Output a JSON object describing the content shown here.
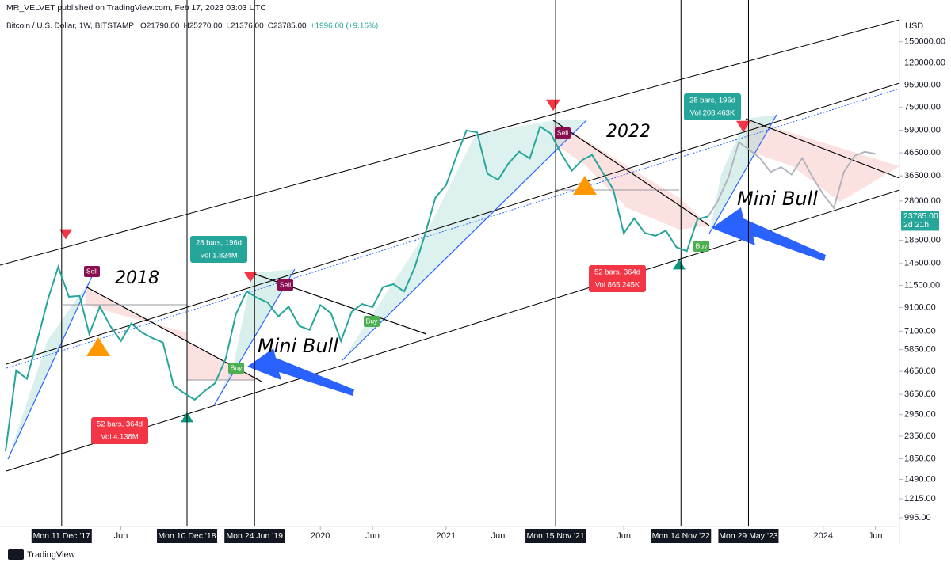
{
  "chart_data": {
    "type": "line",
    "header": "MR_VELVET published on TradingView.com, Feb 17, 2023 03:03 UTC",
    "symbol": "Bitcoin / U.S. Dollar, 1W, BITSTAMP",
    "ohlc": [
      "O21790.00",
      "H25270.00",
      "L21376.00",
      "C23785.00",
      "+1996.00 (+9.16%)"
    ],
    "currency": "USD",
    "footer": "TradingView",
    "log_scale": true,
    "grid": false,
    "ylim": [
      946,
      197000
    ],
    "yticks": [
      {
        "value": 150000,
        "label": "150000.00"
      },
      {
        "value": 120000,
        "label": "120000.00"
      },
      {
        "value": 95000,
        "label": "95000.00"
      },
      {
        "value": 75000,
        "label": "75000.00"
      },
      {
        "value": 59000,
        "label": "59000.00"
      },
      {
        "value": 46500,
        "label": "46500.00"
      },
      {
        "value": 36500,
        "label": "36500.00"
      },
      {
        "value": 28000,
        "label": "28000.00"
      },
      {
        "value": 18500,
        "label": "18500.00"
      },
      {
        "value": 14500,
        "label": "14500.00"
      },
      {
        "value": 11500,
        "label": "11500.00"
      },
      {
        "value": 9100,
        "label": "9100.00"
      },
      {
        "value": 7100,
        "label": "7100.00"
      },
      {
        "value": 5850,
        "label": "5850.00"
      },
      {
        "value": 4650,
        "label": "4650.00"
      },
      {
        "value": 3650,
        "label": "3650.00"
      },
      {
        "value": 2950,
        "label": "2950.00"
      },
      {
        "value": 2350,
        "label": "2350.00"
      },
      {
        "value": 1850,
        "label": "1850.00"
      },
      {
        "value": 1490,
        "label": "1490.00"
      },
      {
        "value": 1215,
        "label": "1215.00"
      },
      {
        "value": 995,
        "label": "995.00"
      }
    ],
    "xlim": [
      "2017-06-15",
      "2024-08-10"
    ],
    "xticks": [
      {
        "value": "2018-06",
        "label": "Jun"
      },
      {
        "value": "2020-01",
        "label": "2020"
      },
      {
        "value": "2020-06",
        "label": "Jun"
      },
      {
        "value": "2021-01",
        "label": "2021"
      },
      {
        "value": "2021-06",
        "label": "Jun"
      },
      {
        "value": "2022-06",
        "label": "Jun"
      },
      {
        "value": "2024-01",
        "label": "2024"
      },
      {
        "value": "2024-06",
        "label": "Jun"
      }
    ],
    "vlines": [
      {
        "value": "2017-12-11",
        "label": "Mon 11 Dec '17"
      },
      {
        "value": "2018-12-10",
        "label": "Mon 10 Dec '18"
      },
      {
        "value": "2019-06-24",
        "label": "Mon 24 Jun '19"
      },
      {
        "value": "2021-11-15",
        "label": "Mon 15 Nov '21"
      },
      {
        "value": "2022-11-14",
        "label": "Mon 14 Nov '22"
      },
      {
        "value": "2023-05-29",
        "label": "Mon 29 May '23"
      }
    ],
    "last_price": {
      "value": 23785,
      "label": "23785.00",
      "countdown": "2d 21h"
    },
    "series": [
      {
        "color": "#26a69a",
        "x": [
          "2017-07",
          "2017-08",
          "2017-09",
          "2017-10",
          "2017-11",
          "2017-12",
          "2018-01",
          "2018-02",
          "2018-03",
          "2018-04",
          "2018-05",
          "2018-06",
          "2018-07",
          "2018-08",
          "2018-09",
          "2018-10",
          "2018-11",
          "2018-12",
          "2019-01",
          "2019-02",
          "2019-03",
          "2019-04",
          "2019-05",
          "2019-06",
          "2019-07",
          "2019-08",
          "2019-09",
          "2019-10",
          "2019-11",
          "2019-12",
          "2020-01",
          "2020-02",
          "2020-03",
          "2020-04",
          "2020-05",
          "2020-06",
          "2020-07",
          "2020-08",
          "2020-09",
          "2020-10",
          "2020-11",
          "2020-12",
          "2021-01",
          "2021-02",
          "2021-03",
          "2021-04",
          "2021-05",
          "2021-06",
          "2021-07",
          "2021-08",
          "2021-09",
          "2021-10",
          "2021-11",
          "2021-12",
          "2022-01",
          "2022-02",
          "2022-03",
          "2022-04",
          "2022-05",
          "2022-06",
          "2022-07",
          "2022-08",
          "2022-09",
          "2022-10",
          "2022-11",
          "2022-12",
          "2023-01",
          "2023-02"
        ],
        "values": [
          2000,
          4700,
          4300,
          6400,
          9900,
          14000,
          10200,
          10300,
          6900,
          9200,
          7500,
          6400,
          7700,
          7000,
          6600,
          6300,
          4000,
          3700,
          3450,
          3800,
          4100,
          5300,
          8500,
          10800,
          10100,
          9600,
          8300,
          9200,
          7500,
          7200,
          9350,
          8600,
          6400,
          8700,
          9450,
          9150,
          11300,
          11650,
          10800,
          13800,
          19700,
          29000,
          33100,
          45200,
          58800,
          57700,
          37300,
          35000,
          41500,
          47100,
          43800,
          61300,
          57000,
          46200,
          38500,
          43200,
          45500,
          37700,
          31800,
          19900,
          23300,
          20000,
          19400,
          20500,
          17200,
          16500,
          23100,
          23785
        ]
      },
      {
        "color": "#b2b5be",
        "x": [
          "2023-02",
          "2023-03",
          "2023-04",
          "2023-05",
          "2023-06",
          "2023-07",
          "2023-08",
          "2023-09",
          "2023-10",
          "2023-11",
          "2023-12",
          "2024-01",
          "2024-02",
          "2024-03",
          "2024-04",
          "2024-05",
          "2024-06"
        ],
        "values": [
          23785,
          28000,
          36000,
          52000,
          48000,
          44000,
          38000,
          40000,
          37000,
          44000,
          36000,
          30000,
          26000,
          38000,
          45000,
          47000,
          46000
        ]
      }
    ],
    "annotations": [
      "2018",
      "2022",
      "Mini Bull",
      "Mini Bull"
    ],
    "signals": [
      "Sell",
      "Sell",
      "Sell",
      "Buy",
      "Buy",
      "Buy"
    ],
    "boxes": [
      [
        "28 bars, 196d",
        "Vol 1.824M"
      ],
      [
        "52 bars, 364d",
        "Vol 4.138M"
      ],
      [
        "52 bars, 364d",
        "Vol 865.245K"
      ],
      [
        "28 bars, 196d",
        "Vol 208.463K"
      ]
    ]
  }
}
